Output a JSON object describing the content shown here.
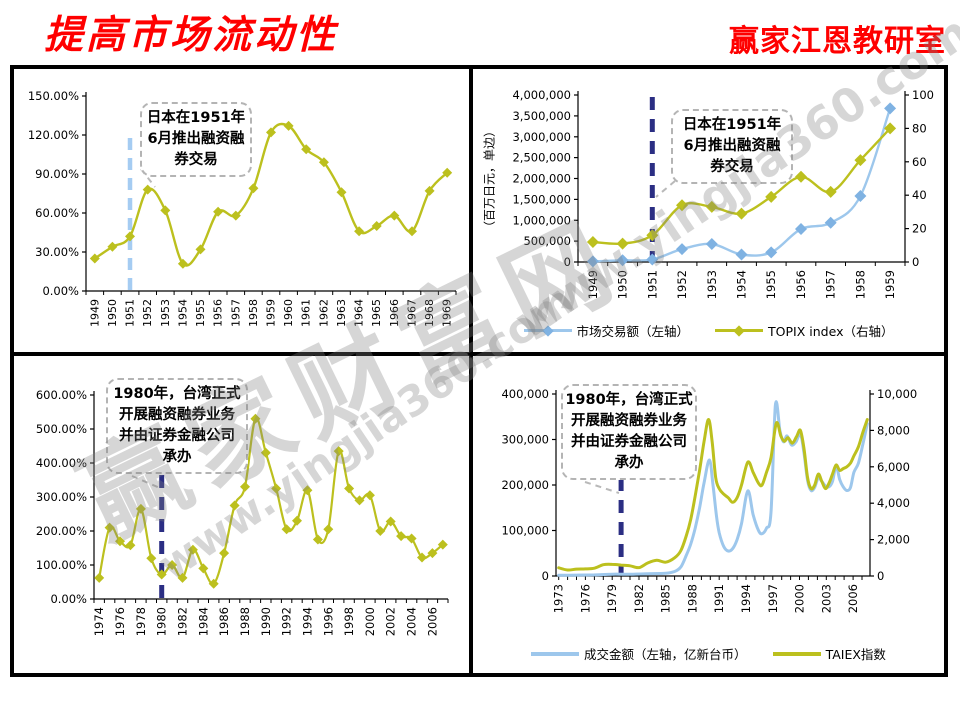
{
  "header": {
    "title": "提高市场流动性",
    "brand": "赢家江恩教研室"
  },
  "watermark": {
    "brand": "赢家财富网",
    "url": "www.yingjia360.com"
  },
  "chart_data": [
    {
      "id": "japan-margin-turnover",
      "type": "line",
      "categories": [
        "1949",
        "1950",
        "1951",
        "1952",
        "1953",
        "1954",
        "1955",
        "1956",
        "1957",
        "1958",
        "1959",
        "1960",
        "1961",
        "1962",
        "1963",
        "1964",
        "1965",
        "1966",
        "1967",
        "1968",
        "1969"
      ],
      "ylim": [
        0,
        150
      ],
      "y_ticks": [
        "0.00%",
        "30.00%",
        "60.00%",
        "90.00%",
        "120.00%",
        "150.00%"
      ],
      "series": [
        {
          "axis": "left",
          "color": "#BCC01E",
          "marker": true,
          "values": [
            25,
            34,
            42,
            78,
            62,
            21,
            32,
            61,
            58,
            79,
            122,
            127,
            109,
            99,
            76,
            46,
            50,
            58,
            46,
            77,
            91
          ]
        }
      ],
      "vline": {
        "at": "1951",
        "color": "#A5CCF2"
      },
      "annotation": {
        "text": "日本在1951年\n6月推出融资融\n券交易"
      }
    },
    {
      "id": "japan-trading-value-topix",
      "type": "line",
      "categories": [
        "1949",
        "1950",
        "1951",
        "1952",
        "1953",
        "1954",
        "1955",
        "1956",
        "1957",
        "1958",
        "1959"
      ],
      "left_axis_title": "（百万日元，单边）",
      "ylim_left": [
        0,
        4000000
      ],
      "y_ticks_left": [
        "0",
        "500,000",
        "1,000,000",
        "1,500,000",
        "2,000,000",
        "2,500,000",
        "3,000,000",
        "3,500,000",
        "4,000,000"
      ],
      "ylim_right": [
        0,
        100
      ],
      "y_ticks_right": [
        "0",
        "20",
        "40",
        "60",
        "80",
        "100"
      ],
      "series": [
        {
          "name": "市场交易额（左轴）",
          "axis": "left",
          "color": "#9DC7EC",
          "marker_color": "#7FB2E2",
          "marker": true,
          "values": [
            15000,
            40000,
            60000,
            310000,
            430000,
            180000,
            230000,
            790000,
            940000,
            1580000,
            3680000
          ]
        },
        {
          "name": "TOPIX index（右轴）",
          "axis": "right",
          "color": "#BCC01E",
          "marker": true,
          "values": [
            12,
            11,
            16,
            34,
            33,
            29,
            39,
            51,
            42,
            61,
            80
          ]
        }
      ],
      "vline": {
        "at": "1951",
        "color": "#2B2E83"
      },
      "annotation": {
        "text": "日本在1951年\n6月推出融资融\n券交易"
      }
    },
    {
      "id": "taiwan-margin-turnover",
      "type": "line",
      "categories": [
        "1974",
        "1975",
        "1976",
        "1977",
        "1978",
        "1979",
        "1980",
        "1981",
        "1982",
        "1983",
        "1984",
        "1985",
        "1986",
        "1987",
        "1988",
        "1989",
        "1990",
        "1991",
        "1992",
        "1993",
        "1994",
        "1995",
        "1996",
        "1997",
        "1998",
        "1999",
        "2000",
        "2001",
        "2002",
        "2003",
        "2004",
        "2005",
        "2006",
        "2007"
      ],
      "x_label_step": 2,
      "ylim": [
        0,
        600
      ],
      "y_ticks": [
        "0.00%",
        "100.00%",
        "200.00%",
        "300.00%",
        "400.00%",
        "500.00%",
        "600.00%"
      ],
      "series": [
        {
          "axis": "left",
          "color": "#BCC01E",
          "marker": true,
          "values": [
            62,
            210,
            170,
            158,
            265,
            120,
            72,
            100,
            62,
            145,
            90,
            45,
            135,
            275,
            330,
            530,
            430,
            325,
            205,
            230,
            320,
            175,
            205,
            435,
            325,
            290,
            305,
            200,
            228,
            185,
            178,
            122,
            135,
            160
          ]
        }
      ],
      "vline": {
        "at": "1980",
        "color": "#2B2E83"
      },
      "annotation": {
        "text": "1980年，台湾正式\n开展融资融券业务\n并由证券金融公司\n承办"
      }
    },
    {
      "id": "taiwan-trading-value-taiex",
      "type": "line",
      "xlim": [
        1972.7,
        2007.9
      ],
      "x_ticks": [
        "1973",
        "1976",
        "1979",
        "1982",
        "1985",
        "1988",
        "1991",
        "1994",
        "1997",
        "2000",
        "2003",
        "2006"
      ],
      "ylim_left": [
        0,
        400000
      ],
      "y_ticks_left": [
        "0",
        "100,000",
        "200,000",
        "300,000",
        "400,000"
      ],
      "ylim_right": [
        0,
        10000
      ],
      "y_ticks_right": [
        "0",
        "2,000",
        "4,000",
        "6,000",
        "8,000",
        "10,000"
      ],
      "series": [
        {
          "name": "成交金额（左轴，亿新台币）",
          "axis": "left",
          "color": "#9DC7EC",
          "marker": false,
          "points": [
            [
              1973,
              1500
            ],
            [
              1975,
              2000
            ],
            [
              1977,
              2500
            ],
            [
              1979,
              4000
            ],
            [
              1981,
              4000
            ],
            [
              1983,
              5000
            ],
            [
              1985,
              6000
            ],
            [
              1986,
              10000
            ],
            [
              1986.7,
              20000
            ],
            [
              1987.3,
              45000
            ],
            [
              1987.8,
              70000
            ],
            [
              1988.3,
              105000
            ],
            [
              1988.8,
              150000
            ],
            [
              1989.3,
              205000
            ],
            [
              1989.9,
              255000
            ],
            [
              1990.3,
              200000
            ],
            [
              1990.7,
              130000
            ],
            [
              1991,
              95000
            ],
            [
              1991.5,
              65000
            ],
            [
              1992,
              55000
            ],
            [
              1992.5,
              60000
            ],
            [
              1993,
              80000
            ],
            [
              1993.5,
              115000
            ],
            [
              1994.2,
              187000
            ],
            [
              1994.8,
              135000
            ],
            [
              1995.4,
              100000
            ],
            [
              1995.8,
              93000
            ],
            [
              1996.3,
              105000
            ],
            [
              1996.8,
              140000
            ],
            [
              1997.3,
              376000
            ],
            [
              1997.8,
              320000
            ],
            [
              1998.2,
              295000
            ],
            [
              1998.6,
              308000
            ],
            [
              1999.1,
              288000
            ],
            [
              1999.6,
              295000
            ],
            [
              2000.1,
              312000
            ],
            [
              2000.5,
              270000
            ],
            [
              2000.9,
              210000
            ],
            [
              2001.3,
              188000
            ],
            [
              2001.7,
              195000
            ],
            [
              2002.1,
              216000
            ],
            [
              2002.5,
              208000
            ],
            [
              2002.9,
              198000
            ],
            [
              2003.3,
              196000
            ],
            [
              2003.7,
              208000
            ],
            [
              2004.1,
              242000
            ],
            [
              2004.5,
              212000
            ],
            [
              2004.9,
              196000
            ],
            [
              2005.3,
              188000
            ],
            [
              2005.7,
              194000
            ],
            [
              2006.1,
              228000
            ],
            [
              2006.6,
              248000
            ],
            [
              2007.1,
              290000
            ],
            [
              2007.6,
              335000
            ]
          ]
        },
        {
          "name": "TAIEX指数",
          "axis": "right",
          "color": "#BCC01E",
          "marker": false,
          "points": [
            [
              1973,
              450
            ],
            [
              1974,
              330
            ],
            [
              1975,
              380
            ],
            [
              1976,
              390
            ],
            [
              1977,
              430
            ],
            [
              1978,
              620
            ],
            [
              1979,
              640
            ],
            [
              1980,
              600
            ],
            [
              1981,
              560
            ],
            [
              1982,
              460
            ],
            [
              1983,
              720
            ],
            [
              1984,
              860
            ],
            [
              1985,
              760
            ],
            [
              1986,
              1000
            ],
            [
              1986.7,
              1400
            ],
            [
              1987.3,
              2200
            ],
            [
              1987.8,
              3100
            ],
            [
              1988.3,
              4400
            ],
            [
              1988.8,
              5800
            ],
            [
              1989.3,
              7400
            ],
            [
              1989.8,
              8600
            ],
            [
              1990.2,
              7400
            ],
            [
              1990.6,
              5400
            ],
            [
              1991,
              4800
            ],
            [
              1991.5,
              4500
            ],
            [
              1992,
              4300
            ],
            [
              1992.5,
              4050
            ],
            [
              1993,
              4300
            ],
            [
              1993.5,
              5000
            ],
            [
              1994.2,
              6260
            ],
            [
              1994.8,
              5700
            ],
            [
              1995.4,
              5100
            ],
            [
              1995.8,
              5000
            ],
            [
              1996.3,
              5700
            ],
            [
              1996.8,
              6500
            ],
            [
              1997.4,
              8400
            ],
            [
              1997.9,
              7700
            ],
            [
              1998.3,
              7400
            ],
            [
              1998.7,
              7600
            ],
            [
              1999.2,
              7300
            ],
            [
              1999.7,
              7700
            ],
            [
              2000.1,
              8000
            ],
            [
              2000.5,
              7000
            ],
            [
              2000.9,
              5400
            ],
            [
              2001.3,
              4800
            ],
            [
              2001.7,
              5000
            ],
            [
              2002.1,
              5600
            ],
            [
              2002.5,
              5200
            ],
            [
              2002.9,
              4800
            ],
            [
              2003.3,
              5100
            ],
            [
              2003.7,
              5600
            ],
            [
              2004.1,
              6100
            ],
            [
              2004.5,
              5800
            ],
            [
              2004.9,
              5900
            ],
            [
              2005.3,
              6000
            ],
            [
              2005.7,
              6200
            ],
            [
              2006.1,
              6600
            ],
            [
              2006.6,
              7100
            ],
            [
              2007.1,
              7900
            ],
            [
              2007.6,
              8600
            ]
          ]
        }
      ],
      "vline": {
        "at_x": 1980,
        "color": "#2B2E83"
      },
      "annotation": {
        "text": "1980年，台湾正式\n开展融资融券业务\n并由证券金融公司\n承办"
      }
    }
  ]
}
